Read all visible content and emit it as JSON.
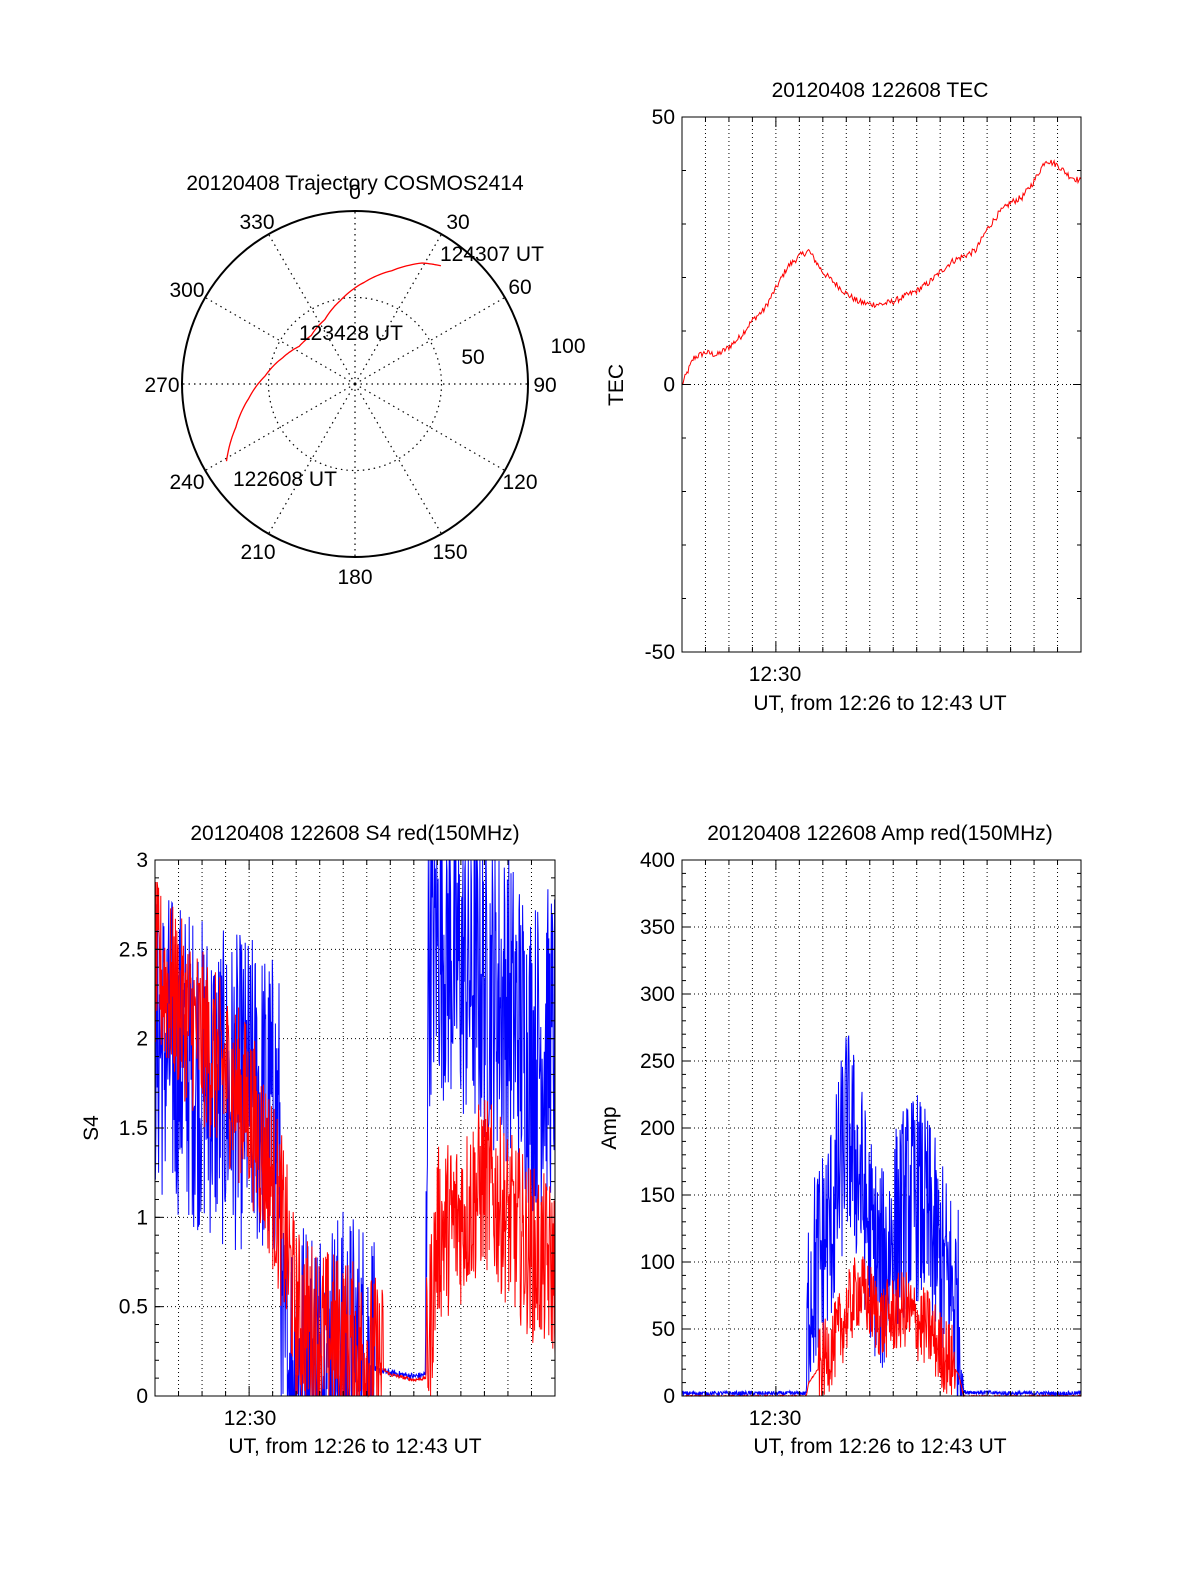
{
  "chart_data": [
    {
      "type": "polar",
      "title": "20120408 Trajectory COSMOS2414",
      "angle_labels": [
        "0",
        "30",
        "60",
        "90",
        "120",
        "150",
        "180",
        "210",
        "240",
        "270",
        "300",
        "330"
      ],
      "radius_labels": [
        "50",
        "100"
      ],
      "elevation_rings": [
        50,
        100
      ],
      "track_color": "#ff0000",
      "track": [
        {
          "az": 239,
          "el": 12
        },
        {
          "az": 250,
          "el": 24
        },
        {
          "az": 262,
          "el": 34
        },
        {
          "az": 275,
          "el": 43
        },
        {
          "az": 290,
          "el": 50
        },
        {
          "az": 304,
          "el": 55
        },
        {
          "az": 318,
          "el": 56
        },
        {
          "az": 335,
          "el": 53
        },
        {
          "az": 350,
          "el": 46
        },
        {
          "az": 5,
          "el": 37
        },
        {
          "az": 18,
          "el": 28
        },
        {
          "az": 29,
          "el": 18
        },
        {
          "az": 36,
          "el": 14
        }
      ],
      "annotations": [
        "124307 UT",
        "123428 UT",
        "122608 UT"
      ]
    },
    {
      "type": "line",
      "title": "20120408 122608 TEC",
      "ylabel": "TEC",
      "xlabel": "UT, from 12:26 to 12:43 UT",
      "x_range_minutes": [
        0,
        17
      ],
      "xticklabel": "12:30",
      "ylim": [
        -50,
        50
      ],
      "yticks": [
        "50",
        "0",
        "-50"
      ],
      "grid": true,
      "series": [
        {
          "color": "#ff0000",
          "points": [
            [
              0,
              0
            ],
            [
              0.5,
              5
            ],
            [
              1,
              6
            ],
            [
              1.5,
              5.5
            ],
            [
              2,
              7
            ],
            [
              2.5,
              9
            ],
            [
              3,
              12
            ],
            [
              3.5,
              14
            ],
            [
              4,
              18
            ],
            [
              4.5,
              22
            ],
            [
              5,
              24
            ],
            [
              5.4,
              25
            ],
            [
              5.7,
              23
            ],
            [
              6,
              21
            ],
            [
              6.5,
              19
            ],
            [
              7,
              17
            ],
            [
              7.5,
              15.5
            ],
            [
              8,
              15
            ],
            [
              8.5,
              15
            ],
            [
              9,
              15.5
            ],
            [
              9.5,
              16.5
            ],
            [
              10,
              17.5
            ],
            [
              10.5,
              19
            ],
            [
              11,
              21
            ],
            [
              11.5,
              23
            ],
            [
              12,
              24
            ],
            [
              12.5,
              25
            ],
            [
              13,
              29
            ],
            [
              13.5,
              32
            ],
            [
              14,
              34
            ],
            [
              14.5,
              35
            ],
            [
              15,
              38
            ],
            [
              15.5,
              42
            ],
            [
              16,
              41
            ],
            [
              16.5,
              39
            ],
            [
              17,
              38
            ]
          ]
        }
      ]
    },
    {
      "type": "line",
      "title": "20120408 122608 S4 red(150MHz)",
      "ylabel": "S4",
      "xlabel": "UT, from 12:26 to 12:43 UT",
      "x_range_minutes": [
        0,
        17
      ],
      "xticklabel": "12:30",
      "ylim": [
        0,
        3
      ],
      "yticks": [
        "3",
        "2.5",
        "2",
        "1.5",
        "1",
        "0.5",
        "0"
      ],
      "grid": true,
      "series": [
        {
          "color": "#0000ff",
          "points": [
            [
              0,
              2.0
            ],
            [
              1,
              1.9
            ],
            [
              2,
              1.8
            ],
            [
              3,
              1.7
            ],
            [
              4,
              1.7
            ],
            [
              5,
              1.6
            ],
            [
              5.3,
              1.5
            ],
            [
              5.4,
              0.17
            ],
            [
              6,
              0.15
            ],
            [
              7,
              0.16
            ],
            [
              8,
              0.17
            ],
            [
              9,
              0.16
            ],
            [
              10,
              0.13
            ],
            [
              11,
              0.11
            ],
            [
              11.5,
              0.12
            ],
            [
              11.6,
              2.5
            ],
            [
              12,
              2.6
            ],
            [
              13,
              2.4
            ],
            [
              14,
              2.3
            ],
            [
              15,
              2.2
            ],
            [
              16,
              1.9
            ],
            [
              17,
              2.0
            ]
          ],
          "noise": 0.9
        },
        {
          "color": "#ff0000",
          "points": [
            [
              0,
              2.4
            ],
            [
              1,
              2.2
            ],
            [
              2,
              2.0
            ],
            [
              3,
              1.8
            ],
            [
              4,
              1.6
            ],
            [
              5,
              1.2
            ],
            [
              5.5,
              0.9
            ],
            [
              6,
              0.45
            ],
            [
              7,
              0.35
            ],
            [
              8,
              0.3
            ],
            [
              9,
              0.22
            ],
            [
              10,
              0.12
            ],
            [
              11,
              0.09
            ],
            [
              11.5,
              0.1
            ],
            [
              12,
              0.9
            ],
            [
              13,
              1.0
            ],
            [
              14,
              1.2
            ],
            [
              15,
              1.0
            ],
            [
              16,
              0.8
            ],
            [
              17,
              0.7
            ]
          ],
          "noise": 0.5
        }
      ]
    },
    {
      "type": "line",
      "title": "20120408 122608 Amp red(150MHz)",
      "ylabel": "Amp",
      "xlabel": "UT, from 12:26 to 12:43 UT",
      "x_range_minutes": [
        0,
        17
      ],
      "xticklabel": "12:30",
      "ylim": [
        0,
        400
      ],
      "yticks": [
        "400",
        "350",
        "300",
        "250",
        "200",
        "150",
        "100",
        "50",
        "0"
      ],
      "grid": true,
      "series": [
        {
          "color": "#0000ff",
          "points": [
            [
              0,
              2
            ],
            [
              4,
              2
            ],
            [
              5.3,
              2
            ],
            [
              5.4,
              80
            ],
            [
              6,
              110
            ],
            [
              6.5,
              140
            ],
            [
              7,
              200
            ],
            [
              7.5,
              170
            ],
            [
              8,
              120
            ],
            [
              8.5,
              90
            ],
            [
              9,
              120
            ],
            [
              9.5,
              140
            ],
            [
              10,
              150
            ],
            [
              10.5,
              130
            ],
            [
              11,
              100
            ],
            [
              11.5,
              80
            ],
            [
              11.8,
              60
            ],
            [
              12,
              3
            ],
            [
              14,
              2
            ],
            [
              17,
              2
            ]
          ],
          "noise": 80
        },
        {
          "color": "#ff0000",
          "points": [
            [
              0,
              0
            ],
            [
              5.3,
              0
            ],
            [
              5.4,
              10
            ],
            [
              6,
              25
            ],
            [
              6.5,
              40
            ],
            [
              7,
              60
            ],
            [
              7.5,
              80
            ],
            [
              8,
              70
            ],
            [
              8.5,
              55
            ],
            [
              9,
              60
            ],
            [
              9.5,
              65
            ],
            [
              10,
              55
            ],
            [
              10.5,
              50
            ],
            [
              11,
              35
            ],
            [
              11.5,
              25
            ],
            [
              11.8,
              15
            ],
            [
              12,
              0
            ],
            [
              17,
              0
            ]
          ],
          "noise": 30
        }
      ]
    }
  ]
}
